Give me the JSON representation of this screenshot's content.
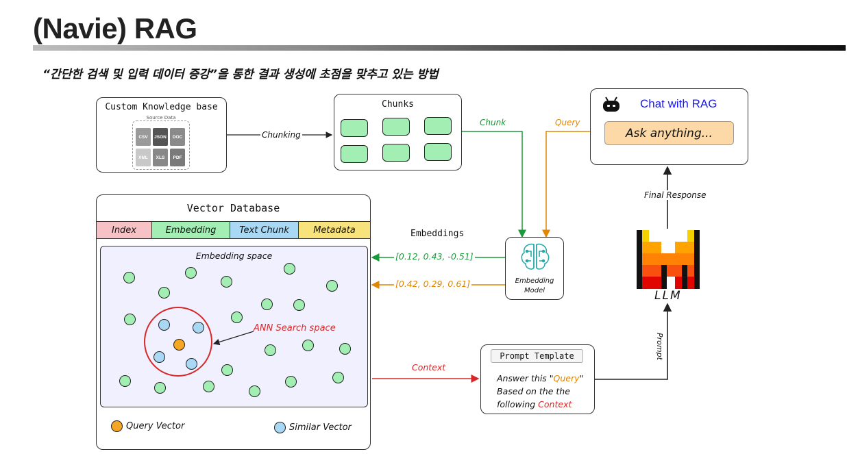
{
  "page": {
    "title": "(Navie) RAG",
    "subtitle": "“간단한 검색 및 입력 데이터 증강”을 통한 결과 생성에 초점을 맞추고 있는 방법"
  },
  "knowledge_base": {
    "title": "Custom Knowledge base",
    "source_label": "Source Data",
    "files": [
      "CSV",
      "JSON",
      "DOC",
      "XML",
      "XLS",
      "PDF"
    ]
  },
  "chunks": {
    "title": "Chunks"
  },
  "edges": {
    "chunking": "Chunking",
    "chunk": "Chunk",
    "query": "Query",
    "embeddings": "Embeddings",
    "embedding_vector_1": "[0.12, 0.43, -0.51]",
    "embedding_vector_2": "[0.42, 0.29, 0.61]",
    "context": "Context",
    "prompt": "Prompt",
    "final_response": "Final Response"
  },
  "chat": {
    "title": "Chat with RAG",
    "input_placeholder": "Ask anything..."
  },
  "vector_db": {
    "title": "Vector Database",
    "columns": [
      "Index",
      "Embedding",
      "Text Chunk",
      "Metadata"
    ],
    "space_label": "Embedding space",
    "ann_label": "ANN Search space",
    "legend_query": "Query Vector",
    "legend_similar": "Similar Vector"
  },
  "embedding_model": {
    "label_line1": "Embedding",
    "label_line2": "Model"
  },
  "llm": {
    "label": "LLM"
  },
  "prompt_template": {
    "title": "Prompt Template",
    "line1_prefix": "Answer this ",
    "line1_quote_open": "\"",
    "line1_highlight": "Query",
    "line1_quote_close": "\"",
    "line2": "Based on the the",
    "line3_prefix": "following ",
    "line3_highlight": "Context"
  },
  "colors": {
    "chunk_fill": "#a3efb3",
    "query_vector": "#f5a623",
    "similar_vector": "#a8d8f4",
    "index_col": "#f7c2c6",
    "embedding_col": "#a3efb3",
    "text_chunk_col": "#a8d8f4",
    "metadata_col": "#f7e27c",
    "chunk_arrow": "#1a9a3a",
    "query_arrow": "#e08600",
    "context_arrow": "#d62828",
    "chat_title": "#1a1aee"
  }
}
